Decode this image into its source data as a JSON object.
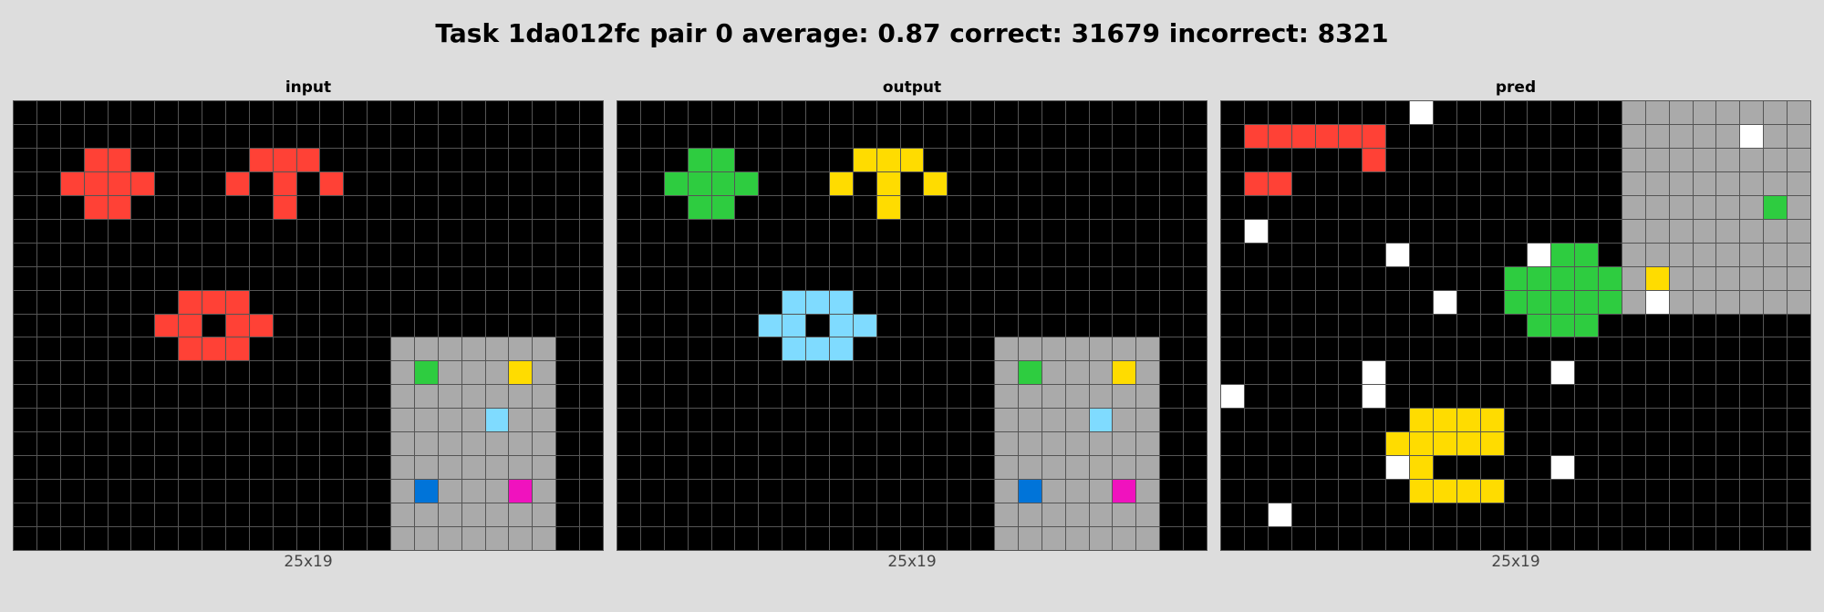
{
  "title": "Task 1da012fc pair 0 average: 0.87 correct: 31679 incorrect: 8321",
  "palette": {
    "0": "#000000",
    "1": "#0074D9",
    "2": "#FF4136",
    "3": "#2ECC40",
    "4": "#FFDC00",
    "5": "#AAAAAA",
    "6": "#F012BE",
    "8": "#7FDBFF",
    "9": "#FFFFFF"
  },
  "panels": [
    {
      "label": "input",
      "dims": "25x19",
      "rows": [
        "0000000000000000000000000",
        "0000000000000000000000000",
        "0003300000222000000000000",
        "0033330002020200000000000",
        "0003300000020000000000000",
        "0000000000000000000000000",
        "0000000000000000000000000",
        "0000000000000000000000000",
        "0000000222000000000000000",
        "0000002202200000000000000",
        "0000000222000000555555500",
        "0000000000000000535554500",
        "0000000000000000555555500",
        "0000000000000000555585500",
        "0000000000000000555555500",
        "0000000000000000555555500",
        "0000000000000000515556500",
        "0000000000000000555555500",
        "0000000000000000555555500"
      ],
      "color_overrides": "input-red"
    },
    {
      "label": "output",
      "dims": "25x19",
      "rows": [
        "0000000000000000000000000",
        "0000000000000000000000000",
        "0003300000444000000000000",
        "0033330004040400000000000",
        "0003300000040000000000000",
        "0000000000000000000000000",
        "0000000000000000000000000",
        "0000000000000000000000000",
        "0000000888000000000000000",
        "0000008808800000000000000",
        "0000000888000000555555500",
        "0000000000000000535554500",
        "0000000000000000555555500",
        "0000000000000000555585500",
        "0000000000000000555555500",
        "0000000000000000555555500",
        "0000000000000000515556500",
        "0000000000000000555555500",
        "0000000000000000555555500"
      ]
    },
    {
      "label": "pred",
      "dims": "25x19",
      "rows": [
        "0000000090000000055555555",
        "0222222000000000055555955",
        "0000002000000000055555555",
        "0220000000000000055555555",
        "0000000000000000055555535",
        "0900000000000000055555555",
        "0000000900000933055555555",
        "0000000000003333354555555",
        "0000000009003333359555555",
        "0000000000000333000000000",
        "0000000000000000000000000",
        "0000009000000090000000000",
        "9000009000000000000000000",
        "0000000044440000000000000",
        "0000000444440000000000000",
        "0000000940000090000000000",
        "0000000044440000000000000",
        "0090000000000000000000000",
        "0000000000000000000000000"
      ]
    }
  ]
}
